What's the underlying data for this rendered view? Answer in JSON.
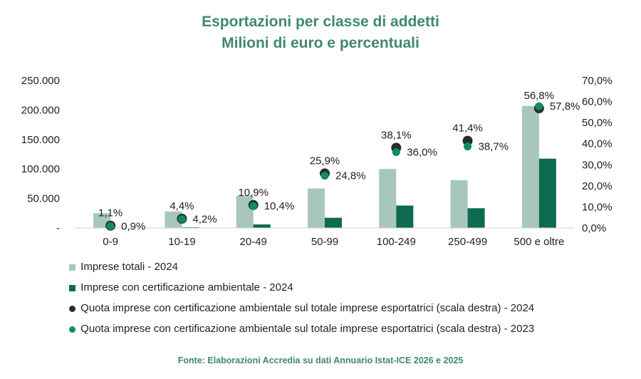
{
  "header": {
    "title_line1": "Esportazioni per classe di addetti",
    "title_line2": "Milioni di euro e percentuali"
  },
  "chart_data": {
    "type": "bar",
    "categories": [
      "0-9",
      "10-19",
      "20-49",
      "50-99",
      "100-249",
      "250-499",
      "500 e oltre"
    ],
    "y_left": {
      "ylim": [
        0,
        250000
      ],
      "ticks": [
        0,
        50000,
        100000,
        150000,
        200000,
        250000
      ],
      "tick_labels": [
        "-",
        "50.000",
        "100.000",
        "150.000",
        "200.000",
        "250.000"
      ]
    },
    "y_right": {
      "ylim": [
        0,
        70
      ],
      "ticks": [
        0,
        10,
        20,
        30,
        40,
        50,
        60,
        70
      ],
      "tick_labels": [
        "0,0%",
        "10,0%",
        "20,0%",
        "30,0%",
        "40,0%",
        "50,0%",
        "60,0%",
        "70,0%"
      ]
    },
    "series": [
      {
        "name": "Imprese totali - 2024",
        "kind": "bar",
        "axis": "left",
        "color": "#a8c7bb",
        "values": [
          25000,
          28000,
          55000,
          67000,
          100000,
          81000,
          207000
        ]
      },
      {
        "name": "Imprese con certificazione ambientale - 2024",
        "kind": "bar",
        "axis": "left",
        "color": "#0d6b4f",
        "values": [
          300,
          1200,
          6000,
          17300,
          38000,
          33500,
          117500
        ]
      },
      {
        "name": "Quota imprese con certificazione ambientale sul totale imprese esportatrici (scala destra) - 2024",
        "kind": "scatter",
        "axis": "right",
        "color": "#2b2b2b",
        "values": [
          1.1,
          4.4,
          10.9,
          25.9,
          38.1,
          41.4,
          56.8
        ],
        "labels": [
          "1,1%",
          "4,4%",
          "10,9%",
          "25,9%",
          "38,1%",
          "41,4%",
          "56,8%"
        ]
      },
      {
        "name": "Quota imprese con certificazione ambientale sul totale imprese esportatrici (scala destra) - 2023",
        "kind": "scatter",
        "axis": "right",
        "color": "#0f8a6a",
        "values": [
          0.9,
          4.2,
          10.4,
          24.8,
          36.0,
          38.7,
          57.8
        ],
        "labels": [
          "0,9%",
          "4,2%",
          "10,4%",
          "24,8%",
          "36,0%",
          "38,7%",
          "57,8%"
        ]
      }
    ],
    "legend_position": "bottom-left",
    "grid": false
  },
  "footer": {
    "source": "Fonte: Elaborazioni Accredia su dati Annuario Istat-ICE 2026 e 2025"
  }
}
